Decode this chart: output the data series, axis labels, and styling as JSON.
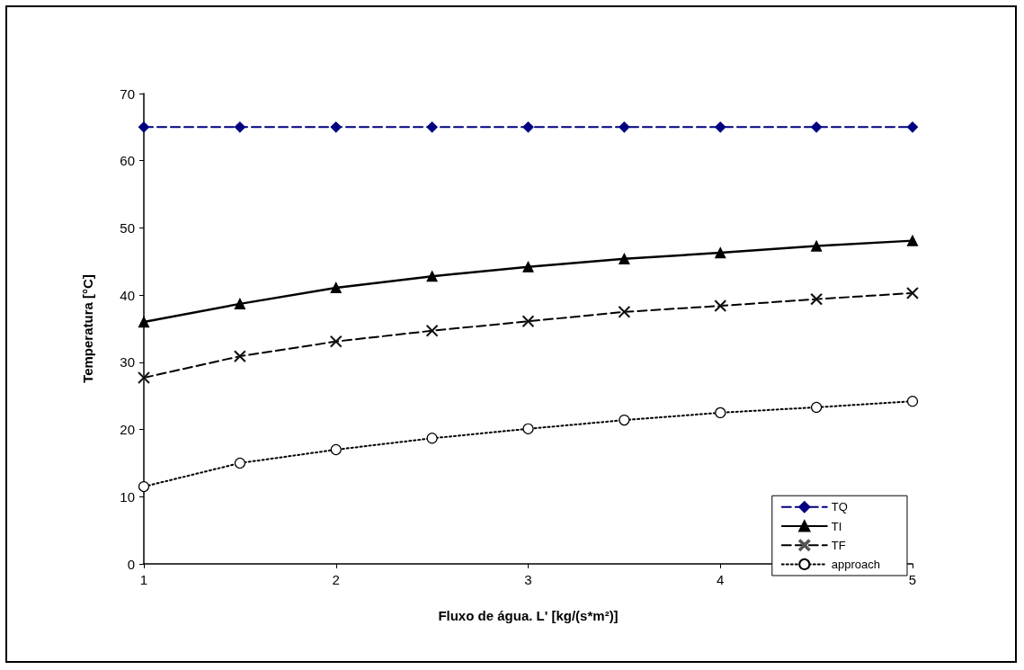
{
  "chart_data": {
    "type": "line",
    "xlabel": "Fluxo de água. L' [kg/(s*m²)]",
    "ylabel": "Temperatura [°C]",
    "x": [
      1,
      1.5,
      2,
      2.5,
      3,
      3.5,
      4,
      4.5,
      5
    ],
    "xlim": [
      1,
      5
    ],
    "xticks": [
      1,
      2,
      3,
      4,
      5
    ],
    "ylim": [
      0,
      70
    ],
    "yticks": [
      0,
      10,
      20,
      30,
      40,
      50,
      60,
      70
    ],
    "grid": false,
    "legend": "bottom right",
    "series": [
      {
        "name": "TQ",
        "color": "#000080",
        "marker": "diamond",
        "line_style": "dashed",
        "values": [
          65,
          65,
          65,
          65,
          65,
          65,
          65,
          65,
          65
        ]
      },
      {
        "name": "TI",
        "color": "#000000",
        "marker": "triangle",
        "line_style": "solid",
        "values": [
          36,
          38.7,
          41.1,
          42.8,
          44.2,
          45.4,
          46.3,
          47.3,
          48.1
        ]
      },
      {
        "name": "TF",
        "color": "#000000",
        "marker": "cross",
        "line_style": "dashed",
        "values": [
          27.7,
          30.9,
          33.1,
          34.7,
          36.1,
          37.5,
          38.4,
          39.4,
          40.3
        ]
      },
      {
        "name": "approach",
        "color": "#000000",
        "marker": "circle",
        "line_style": "dotted",
        "values": [
          11.5,
          15,
          17,
          18.7,
          20.1,
          21.4,
          22.5,
          23.3,
          24.2
        ]
      }
    ]
  }
}
